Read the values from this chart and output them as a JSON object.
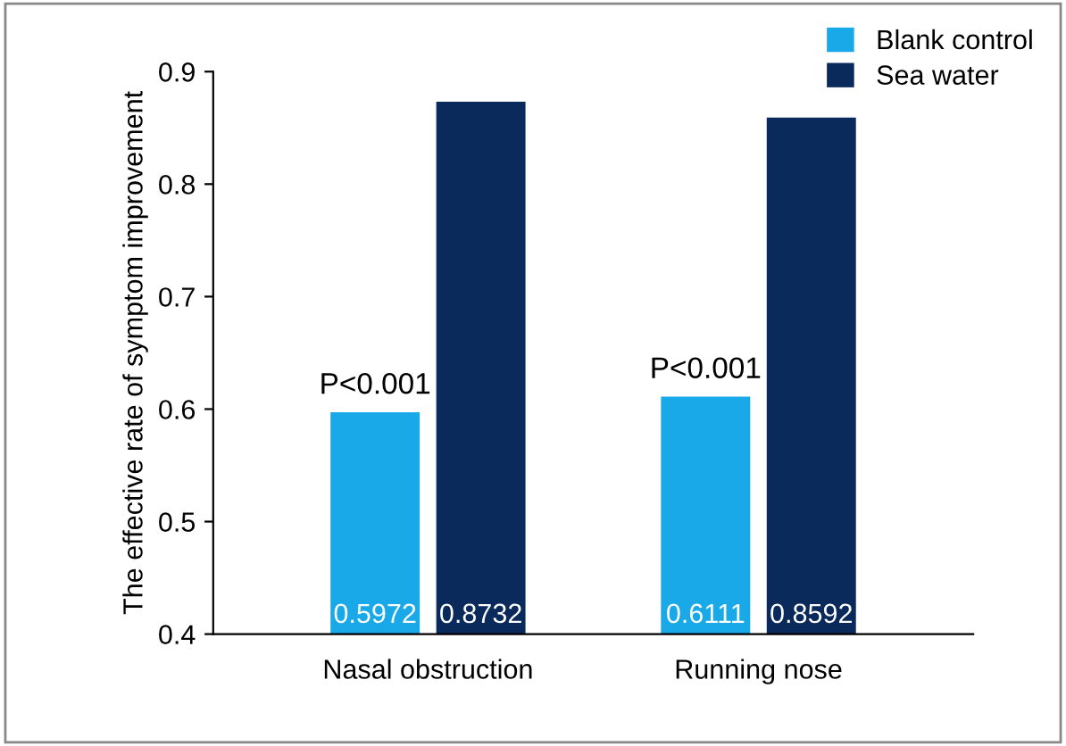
{
  "chart_data": {
    "type": "bar",
    "ylabel": "The effective rate of symptom improvement",
    "categories": [
      "Nasal obstruction",
      "Running nose"
    ],
    "series": [
      {
        "name": "Blank control",
        "color": "#1aa9e8",
        "values": [
          0.5972,
          0.6111
        ]
      },
      {
        "name": "Sea water",
        "color": "#0b2a5c",
        "values": [
          0.8732,
          0.8592
        ]
      }
    ],
    "ylim": [
      0.4,
      0.9
    ],
    "yticks": [
      0.4,
      0.5,
      0.6,
      0.7,
      0.8,
      0.9
    ],
    "data_labels": true,
    "legend": "top right",
    "grid": false,
    "annotations": [
      {
        "text": "P<0.001",
        "x": "Nasal obstruction",
        "y": 0.5972
      },
      {
        "text": "P<0.001",
        "x": "Running nose",
        "y": 0.6111
      }
    ]
  }
}
